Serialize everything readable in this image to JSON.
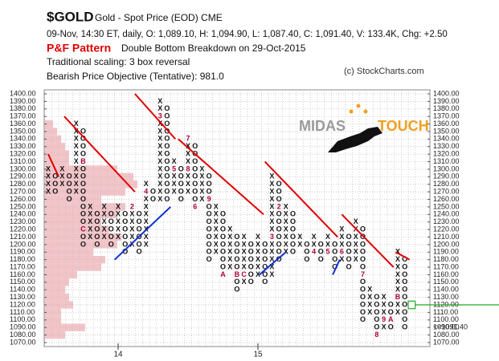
{
  "chart_data": {
    "type": "pnf",
    "title": "$GOLD",
    "subtitle": "Gold - Spot Price (EOD)  CME",
    "info": "09-Nov, 14:30 ET, daily, O: 1,089.10, H: 1,094.90, L: 1,087.40, C: 1,091.40, V: 133.4K, Chg: +2.50",
    "pattern_label": "P&F Pattern",
    "pattern": "Double Bottom Breakdown on 29-Oct-2015",
    "scaling": "Traditional scaling: 3 box reversal",
    "objective": "Bearish Price Objective (Tentative): 981.0",
    "copyright": "(c) StockCharts.com",
    "logo": {
      "left": "MIDAS",
      "right": "TOUCH"
    },
    "ylim": [
      1070,
      1400
    ],
    "yticks": [
      {
        "value": 1400,
        "label": "1400.00"
      },
      {
        "value": 1390,
        "label": "1390.00"
      },
      {
        "value": 1380,
        "label": "1380.00"
      },
      {
        "value": 1370,
        "label": "1370.00"
      },
      {
        "value": 1360,
        "label": "1360.00"
      },
      {
        "value": 1350,
        "label": "1350.00"
      },
      {
        "value": 1340,
        "label": "1340.00"
      },
      {
        "value": 1330,
        "label": "1330.00"
      },
      {
        "value": 1320,
        "label": "1320.00"
      },
      {
        "value": 1310,
        "label": "1310.00"
      },
      {
        "value": 1300,
        "label": "1300.00"
      },
      {
        "value": 1290,
        "label": "1290.00"
      },
      {
        "value": 1280,
        "label": "1280.00"
      },
      {
        "value": 1270,
        "label": "1270.00"
      },
      {
        "value": 1260,
        "label": "1260.00"
      },
      {
        "value": 1250,
        "label": "1250.00"
      },
      {
        "value": 1240,
        "label": "1240.00"
      },
      {
        "value": 1230,
        "label": "1230.00"
      },
      {
        "value": 1220,
        "label": "1220.00"
      },
      {
        "value": 1210,
        "label": "1210.00"
      },
      {
        "value": 1200,
        "label": "1200.00"
      },
      {
        "value": 1190,
        "label": "1190.00"
      },
      {
        "value": 1180,
        "label": "1180.00"
      },
      {
        "value": 1170,
        "label": "1170.00"
      },
      {
        "value": 1160,
        "label": "1160.00"
      },
      {
        "value": 1150,
        "label": "1150.00"
      },
      {
        "value": 1140,
        "label": "1140.00"
      },
      {
        "value": 1130,
        "label": "1130.00"
      },
      {
        "value": 1120,
        "label": "1120.00"
      },
      {
        "value": 1110,
        "label": "1110.00"
      },
      {
        "value": 1100,
        "label": "1100.00"
      },
      {
        "value": 1090,
        "label": "1090.00"
      },
      {
        "value": 1080,
        "label": "1080.00"
      },
      {
        "value": 1070,
        "label": "1070.00"
      }
    ],
    "xticks": [
      {
        "value": 10,
        "label": "14"
      },
      {
        "value": 30,
        "label": "15"
      }
    ],
    "grid": true,
    "colors": {
      "x": "#111111",
      "o": "#111111",
      "mark": "#b0003a"
    },
    "columns": [
      {
        "type": "X",
        "low": 1270,
        "high": 1300
      },
      {
        "type": "O",
        "low": 1270,
        "high": 1290
      },
      {
        "type": "X",
        "low": 1280,
        "high": 1300
      },
      {
        "type": "O",
        "low": 1260,
        "high": 1290
      },
      {
        "type": "X",
        "low": 1270,
        "high": 1360
      },
      {
        "type": "O",
        "low": 1200,
        "high": 1350,
        "marks": [
          {
            "price": 1310,
            "label": "B"
          },
          {
            "price": 1220,
            "label": "C"
          }
        ]
      },
      {
        "type": "X",
        "low": 1210,
        "high": 1250
      },
      {
        "type": "O",
        "low": 1200,
        "high": 1240
      },
      {
        "type": "X",
        "low": 1210,
        "high": 1250
      },
      {
        "type": "O",
        "low": 1200,
        "high": 1240
      },
      {
        "type": "X",
        "low": 1210,
        "high": 1250
      },
      {
        "type": "O",
        "low": 1190,
        "high": 1240
      },
      {
        "type": "X",
        "low": 1200,
        "high": 1250,
        "marks": [
          {
            "price": 1250,
            "label": "2"
          }
        ]
      },
      {
        "type": "O",
        "low": 1190,
        "high": 1240
      },
      {
        "type": "X",
        "low": 1200,
        "high": 1280,
        "marks": [
          {
            "price": 1270,
            "label": "4"
          }
        ]
      },
      {
        "type": "O",
        "low": 1260,
        "high": 1270
      },
      {
        "type": "X",
        "low": 1260,
        "high": 1390,
        "marks": [
          {
            "price": 1370,
            "label": "3"
          }
        ]
      },
      {
        "type": "O",
        "low": 1260,
        "high": 1380
      },
      {
        "type": "X",
        "low": 1270,
        "high": 1310,
        "marks": [
          {
            "price": 1300,
            "label": "5"
          }
        ]
      },
      {
        "type": "O",
        "low": 1260,
        "high": 1300
      },
      {
        "type": "X",
        "low": 1270,
        "high": 1340,
        "marks": [
          {
            "price": 1340,
            "label": "7"
          },
          {
            "price": 1300,
            "label": "8"
          }
        ]
      },
      {
        "type": "O",
        "low": 1250,
        "high": 1330,
        "marks": [
          {
            "price": 1250,
            "label": "6"
          }
        ]
      },
      {
        "type": "X",
        "low": 1260,
        "high": 1300
      },
      {
        "type": "O",
        "low": 1180,
        "high": 1290,
        "marks": [
          {
            "price": 1260,
            "label": "9"
          }
        ]
      },
      {
        "type": "X",
        "low": 1190,
        "high": 1250
      },
      {
        "type": "O",
        "low": 1160,
        "high": 1240,
        "marks": [
          {
            "price": 1160,
            "label": "A"
          }
        ]
      },
      {
        "type": "X",
        "low": 1170,
        "high": 1220
      },
      {
        "type": "O",
        "low": 1140,
        "high": 1210,
        "marks": [
          {
            "price": 1160,
            "label": "B"
          }
        ]
      },
      {
        "type": "X",
        "low": 1150,
        "high": 1210,
        "marks": [
          {
            "price": 1160,
            "label": "C"
          }
        ]
      },
      {
        "type": "O",
        "low": 1150,
        "high": 1200
      },
      {
        "type": "X",
        "low": 1160,
        "high": 1210
      },
      {
        "type": "O",
        "low": 1150,
        "high": 1200
      },
      {
        "type": "X",
        "low": 1160,
        "high": 1290,
        "marks": [
          {
            "price": 1210,
            "label": "3"
          }
        ]
      },
      {
        "type": "O",
        "low": 1180,
        "high": 1280,
        "marks": [
          {
            "price": 1250,
            "label": "2"
          }
        ]
      },
      {
        "type": "X",
        "low": 1190,
        "high": 1250
      },
      {
        "type": "O",
        "low": 1190,
        "high": 1240
      },
      {
        "type": "X",
        "low": 1200,
        "high": 1210
      },
      {
        "type": "O",
        "low": 1180,
        "high": 1200
      },
      {
        "type": "X",
        "low": 1190,
        "high": 1210,
        "marks": [
          {
            "price": 1190,
            "label": "4"
          }
        ]
      },
      {
        "type": "O",
        "low": 1180,
        "high": 1200
      },
      {
        "type": "X",
        "low": 1190,
        "high": 1210,
        "marks": [
          {
            "price": 1190,
            "label": "5"
          }
        ]
      },
      {
        "type": "O",
        "low": 1170,
        "high": 1200
      },
      {
        "type": "X",
        "low": 1180,
        "high": 1220,
        "marks": [
          {
            "price": 1190,
            "label": "6"
          }
        ]
      },
      {
        "type": "O",
        "low": 1170,
        "high": 1210
      },
      {
        "type": "X",
        "low": 1180,
        "high": 1230
      },
      {
        "type": "O",
        "low": 1100,
        "high": 1220,
        "marks": [
          {
            "price": 1160,
            "label": "7"
          }
        ]
      },
      {
        "type": "X",
        "low": 1110,
        "high": 1140
      },
      {
        "type": "O",
        "low": 1080,
        "high": 1130,
        "marks": [
          {
            "price": 1080,
            "label": "8"
          }
        ]
      },
      {
        "type": "X",
        "low": 1090,
        "high": 1130,
        "marks": [
          {
            "price": 1100,
            "label": "9"
          }
        ]
      },
      {
        "type": "O",
        "low": 1090,
        "high": 1120,
        "marks": [
          {
            "price": 1100,
            "label": "A"
          }
        ]
      },
      {
        "type": "X",
        "low": 1110,
        "high": 1190,
        "marks": [
          {
            "price": 1130,
            "label": "B"
          }
        ]
      },
      {
        "type": "O",
        "low": 1090,
        "high": 1180
      }
    ],
    "trendlines": [
      {
        "color": "#e00000",
        "from": [
          0,
          1320
        ],
        "to": [
          1.5,
          1290
        ]
      },
      {
        "color": "#e00000",
        "from": [
          2.3,
          1370
        ],
        "to": [
          12.4,
          1270
        ]
      },
      {
        "color": "#e00000",
        "from": [
          12.4,
          1400
        ],
        "to": [
          18.2,
          1340
        ]
      },
      {
        "color": "#e00000",
        "from": [
          18.6,
          1340
        ],
        "to": [
          30.8,
          1240
        ]
      },
      {
        "color": "#e00000",
        "from": [
          31,
          1310
        ],
        "to": [
          41.4,
          1210
        ]
      },
      {
        "color": "#e00000",
        "from": [
          42,
          1240
        ],
        "to": [
          49.4,
          1170
        ]
      },
      {
        "color": "#e00000",
        "from": [
          49.7,
          1190
        ],
        "to": [
          51.7,
          1180
        ]
      },
      {
        "color": "#1030d0",
        "from": [
          9.5,
          1180
        ],
        "to": [
          17.5,
          1250
        ]
      },
      {
        "color": "#1030d0",
        "from": [
          30.2,
          1160
        ],
        "to": [
          34,
          1190
        ]
      },
      {
        "color": "#1030d0",
        "from": [
          40.7,
          1160
        ],
        "to": [
          41.7,
          1180
        ]
      }
    ],
    "volume_by_price": {
      "color": "#f2c4c8",
      "prices": [
        1360,
        1350,
        1340,
        1330,
        1320,
        1310,
        1300,
        1290,
        1280,
        1270,
        1260,
        1250,
        1240,
        1230,
        1220,
        1210,
        1200,
        1190,
        1180,
        1170,
        1160,
        1150,
        1140,
        1130,
        1120,
        1110,
        1100,
        1090,
        1080
      ],
      "values": [
        10,
        15,
        20,
        25,
        30,
        30,
        90,
        110,
        115,
        100,
        70,
        100,
        90,
        70,
        80,
        95,
        90,
        60,
        75,
        70,
        40,
        30,
        25,
        30,
        35,
        20,
        20,
        50,
        25
      ]
    },
    "last_price": {
      "value": 1091.4,
      "label": "<<1091.40",
      "color": "#c0003a"
    },
    "current_box": {
      "column": 52,
      "price": 1120,
      "color": "#22aa22"
    }
  }
}
